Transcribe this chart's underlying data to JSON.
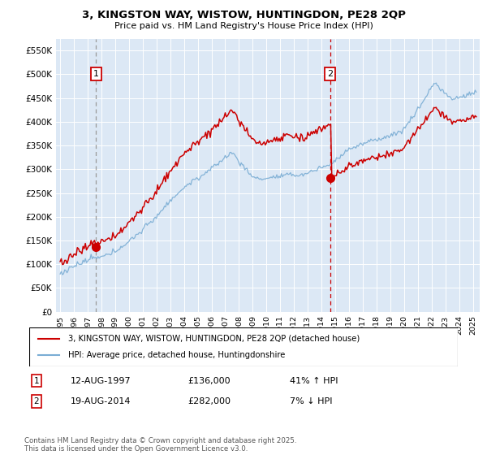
{
  "title": "3, KINGSTON WAY, WISTOW, HUNTINGDON, PE28 2QP",
  "subtitle": "Price paid vs. HM Land Registry's House Price Index (HPI)",
  "ylim": [
    0,
    575000
  ],
  "yticks": [
    0,
    50000,
    100000,
    150000,
    200000,
    250000,
    300000,
    350000,
    400000,
    450000,
    500000,
    550000
  ],
  "ytick_labels": [
    "£0",
    "£50K",
    "£100K",
    "£150K",
    "£200K",
    "£250K",
    "£300K",
    "£350K",
    "£400K",
    "£450K",
    "£500K",
    "£550K"
  ],
  "sale1_date": 1997.62,
  "sale1_price": 136000,
  "sale1_label": "12-AUG-1997",
  "sale1_pct": "41% ↑ HPI",
  "sale2_date": 2014.63,
  "sale2_price": 282000,
  "sale2_label": "19-AUG-2014",
  "sale2_pct": "7% ↓ HPI",
  "legend_entry1": "3, KINGSTON WAY, WISTOW, HUNTINGDON, PE28 2QP (detached house)",
  "legend_entry2": "HPI: Average price, detached house, Huntingdonshire",
  "note": "Contains HM Land Registry data © Crown copyright and database right 2025.\nThis data is licensed under the Open Government Licence v3.0.",
  "line1_color": "#cc0000",
  "line2_color": "#7aadd4",
  "vline1_color": "#aaaaaa",
  "vline2_color": "#cc0000",
  "plot_bg": "#dce8f5"
}
